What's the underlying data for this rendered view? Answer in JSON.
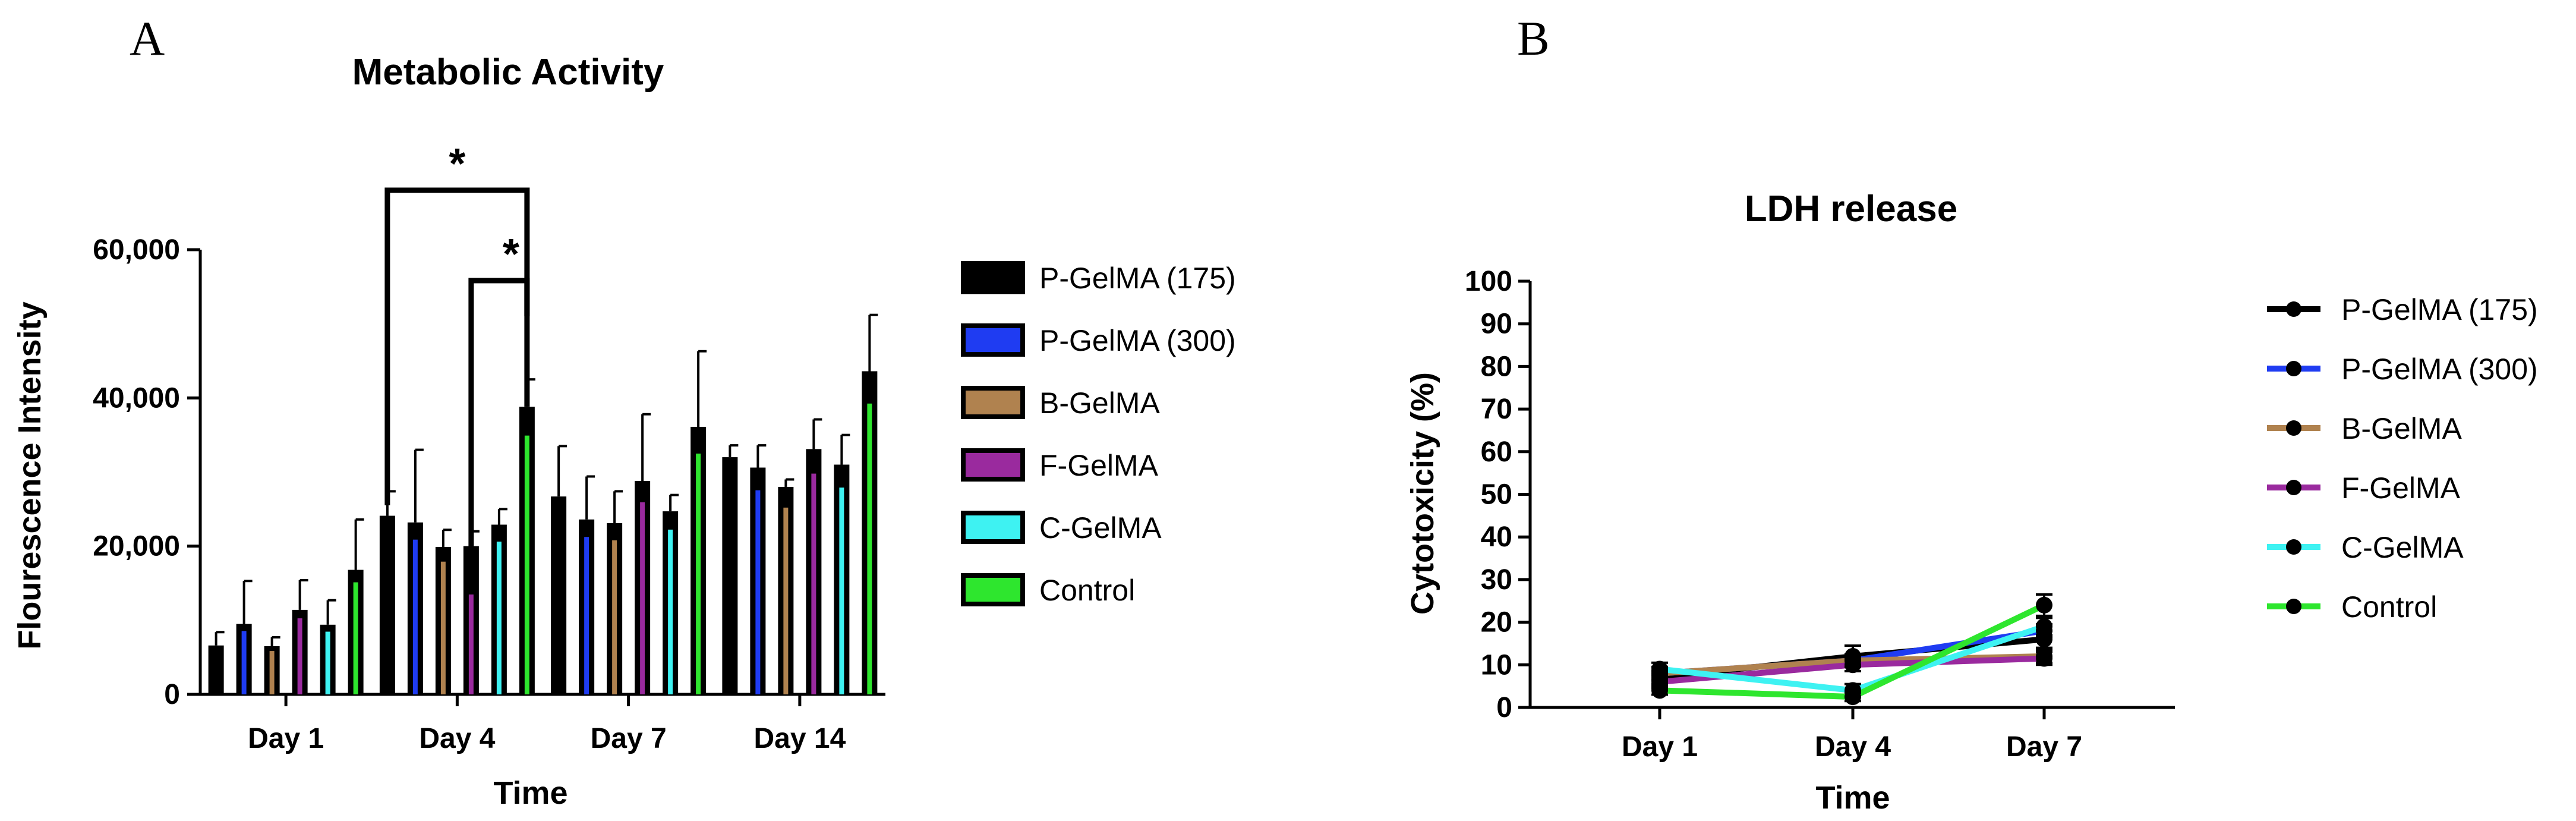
{
  "panels": {
    "a": "A",
    "b": "B"
  },
  "colors": {
    "P-GelMA (175)": "#000000",
    "P-GelMA (300)": "#1f3cf2",
    "B-GelMA": "#b0824f",
    "F-GelMA": "#9a2a9e",
    "C-GelMA": "#3ef2f2",
    "Control": "#2ee62e"
  },
  "chart_data": [
    {
      "type": "bar",
      "title": "Metabolic Activity",
      "xlabel": "Time",
      "ylabel": "Flourescence Intensity",
      "ylim": [
        0,
        60000
      ],
      "yticks": [
        0,
        20000,
        40000,
        60000
      ],
      "ytick_labels": [
        "0",
        "20,000",
        "40,000",
        "60,000"
      ],
      "categories": [
        "Day 1",
        "Day 4",
        "Day 7",
        "Day 14"
      ],
      "series": [
        {
          "name": "P-GelMA (175)",
          "values": [
            6600,
            24100,
            26700,
            32000
          ],
          "errors": [
            1800,
            3300,
            6800,
            1600
          ]
        },
        {
          "name": "P-GelMA (300)",
          "values": [
            9500,
            23200,
            23600,
            30600
          ],
          "errors": [
            5800,
            9800,
            5800,
            3000
          ]
        },
        {
          "name": "B-GelMA",
          "values": [
            6500,
            19900,
            23100,
            28000
          ],
          "errors": [
            1200,
            2300,
            4300,
            1000
          ]
        },
        {
          "name": "F-GelMA",
          "values": [
            11400,
            20000,
            28800,
            33100
          ],
          "errors": [
            4000,
            2000,
            9000,
            4000
          ]
        },
        {
          "name": "C-GelMA",
          "values": [
            9400,
            22900,
            24700,
            31000
          ],
          "errors": [
            3300,
            2100,
            2200,
            4000
          ]
        },
        {
          "name": "Control",
          "values": [
            16800,
            38800,
            36100,
            43600
          ],
          "errors": [
            6800,
            3700,
            10200,
            7600
          ]
        }
      ],
      "significance": [
        {
          "label": "*",
          "category": "Day 4",
          "from": "P-GelMA (175)",
          "to": "Control"
        },
        {
          "label": "*",
          "category": "Day 4",
          "from": "F-GelMA",
          "to": "Control"
        }
      ]
    },
    {
      "type": "line",
      "title": "LDH release",
      "xlabel": "Time",
      "ylabel": "Cytotoxicity (%)",
      "ylim": [
        0,
        100
      ],
      "yticks": [
        0,
        10,
        20,
        30,
        40,
        50,
        60,
        70,
        80,
        90,
        100
      ],
      "ytick_labels": [
        "0",
        "10",
        "20",
        "30",
        "40",
        "50",
        "60",
        "70",
        "80",
        "90",
        "100"
      ],
      "categories": [
        "Day 1",
        "Day 4",
        "Day 7"
      ],
      "series": [
        {
          "name": "P-GelMA (175)",
          "values": [
            7,
            12,
            16
          ],
          "errors": [
            1.5,
            2.5,
            2
          ]
        },
        {
          "name": "P-GelMA (300)",
          "values": [
            8,
            11,
            18
          ],
          "errors": [
            1.5,
            1.5,
            1.5
          ]
        },
        {
          "name": "B-GelMA",
          "values": [
            8,
            11,
            12
          ],
          "errors": [
            1.5,
            1.5,
            1.5
          ]
        },
        {
          "name": "F-GelMA",
          "values": [
            6,
            10,
            11.5
          ],
          "errors": [
            1.5,
            1.5,
            1.5
          ]
        },
        {
          "name": "C-GelMA",
          "values": [
            9,
            4,
            19
          ],
          "errors": [
            1.5,
            1.5,
            2
          ]
        },
        {
          "name": "Control",
          "values": [
            4,
            2.5,
            24
          ],
          "errors": [
            1,
            1,
            2.5
          ]
        }
      ]
    }
  ]
}
